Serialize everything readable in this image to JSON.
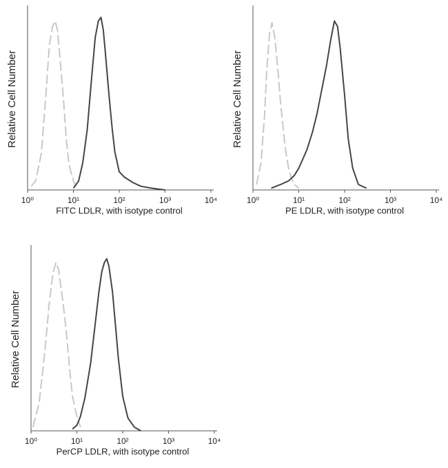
{
  "chart_data": [
    {
      "type": "line",
      "x_label": "FITC  LDLR,  with isotype control",
      "y_label": "Relative Cell Number",
      "log_x": true,
      "xlim": [
        1,
        10000
      ],
      "xticks": [
        {
          "value": 1,
          "label": "10⁰"
        },
        {
          "value": 10,
          "label": "10¹"
        },
        {
          "value": 100,
          "label": "10²"
        },
        {
          "value": 1000,
          "label": "10³"
        },
        {
          "value": 10000,
          "label": "10⁴"
        }
      ],
      "ylim": [
        0,
        100
      ],
      "series": [
        {
          "color": "#c8c8c8",
          "dashed": true,
          "x": [
            1.2,
            1.5,
            2,
            2.5,
            3,
            3.5,
            4,
            4.5,
            5,
            6,
            7,
            8,
            10,
            12
          ],
          "values": [
            2,
            5,
            20,
            52,
            80,
            90,
            93,
            88,
            75,
            52,
            28,
            14,
            5,
            1
          ]
        },
        {
          "color": "#444444",
          "dashed": false,
          "x": [
            10,
            13,
            16,
            20,
            25,
            30,
            35,
            40,
            45,
            50,
            60,
            70,
            80,
            100,
            130,
            200,
            300,
            500,
            1000
          ],
          "values": [
            1,
            5,
            15,
            33,
            62,
            84,
            93,
            95,
            88,
            75,
            52,
            34,
            21,
            10,
            7,
            4,
            2,
            1,
            0
          ]
        }
      ]
    },
    {
      "type": "line",
      "x_label": "PE  LDLR,  with isotype control",
      "y_label": "Relative Cell Number",
      "log_x": true,
      "xlim": [
        1,
        10000
      ],
      "xticks": [
        {
          "value": 1,
          "label": "10⁰"
        },
        {
          "value": 10,
          "label": "10¹"
        },
        {
          "value": 100,
          "label": "10²"
        },
        {
          "value": 1000,
          "label": "10³"
        },
        {
          "value": 10000,
          "label": "10⁴"
        }
      ],
      "ylim": [
        0,
        100
      ],
      "series": [
        {
          "color": "#c8c8c8",
          "dashed": true,
          "x": [
            1.2,
            1.5,
            1.8,
            2,
            2.3,
            2.6,
            3,
            3.5,
            4,
            5,
            6,
            7,
            8,
            10
          ],
          "values": [
            3,
            15,
            42,
            66,
            86,
            92,
            84,
            66,
            48,
            24,
            12,
            6,
            3,
            1
          ]
        },
        {
          "color": "#444444",
          "dashed": false,
          "x": [
            2.5,
            4,
            6,
            8,
            10,
            15,
            20,
            25,
            30,
            40,
            50,
            60,
            70,
            80,
            100,
            120,
            150,
            200,
            300
          ],
          "values": [
            1,
            3,
            5,
            8,
            12,
            22,
            32,
            42,
            52,
            68,
            83,
            93,
            90,
            78,
            52,
            28,
            12,
            3,
            1
          ]
        }
      ]
    },
    {
      "type": "line",
      "x_label": "PerCP LDLR, with isotype control",
      "y_label": "Relative Cell Number",
      "log_x": true,
      "xlim": [
        1,
        10000
      ],
      "xticks": [
        {
          "value": 1,
          "label": "10⁰"
        },
        {
          "value": 10,
          "label": "10¹"
        },
        {
          "value": 100,
          "label": "10²"
        },
        {
          "value": 1000,
          "label": "10³"
        },
        {
          "value": 10000,
          "label": "10⁴"
        }
      ],
      "ylim": [
        0,
        100
      ],
      "series": [
        {
          "color": "#c8c8c8",
          "dashed": true,
          "x": [
            1.1,
            1.5,
            2,
            2.5,
            3,
            3.5,
            4,
            5,
            6,
            7,
            8,
            10,
            12
          ],
          "values": [
            2,
            15,
            43,
            70,
            86,
            92,
            88,
            70,
            52,
            33,
            19,
            8,
            2
          ]
        },
        {
          "color": "#444444",
          "dashed": false,
          "x": [
            8,
            10,
            12,
            15,
            20,
            25,
            30,
            35,
            40,
            45,
            50,
            60,
            70,
            80,
            100,
            130,
            180,
            250
          ],
          "values": [
            1,
            3,
            8,
            18,
            37,
            58,
            75,
            87,
            92,
            94,
            90,
            76,
            57,
            40,
            19,
            7,
            2,
            0
          ]
        }
      ]
    }
  ]
}
